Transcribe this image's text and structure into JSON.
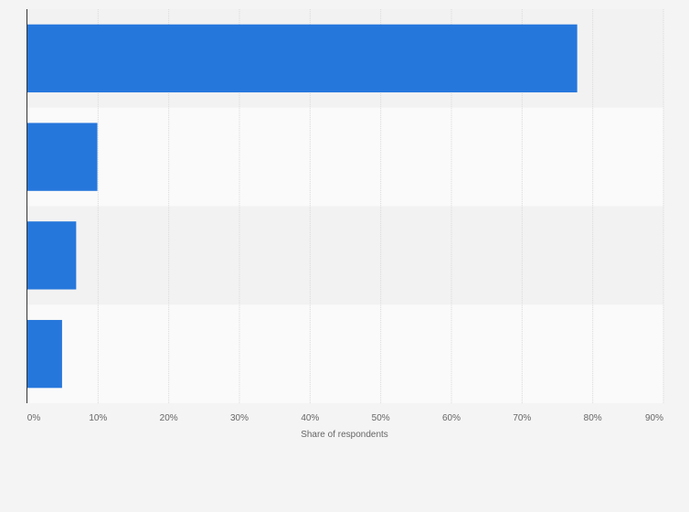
{
  "chart_data": {
    "type": "bar",
    "orientation": "horizontal",
    "categories": [
      "",
      "",
      "",
      ""
    ],
    "values": [
      77.8,
      9.9,
      6.9,
      4.9
    ],
    "xlabel": "Share of respondents",
    "ylabel": "",
    "xlim": [
      0,
      90
    ],
    "xticks": [
      "0%",
      "10%",
      "20%",
      "30%",
      "40%",
      "50%",
      "60%",
      "70%",
      "80%",
      "90%"
    ],
    "grid": true,
    "bar_color": "#2677dc",
    "band_colors": [
      "#f2f2f2",
      "#fafafa"
    ]
  }
}
